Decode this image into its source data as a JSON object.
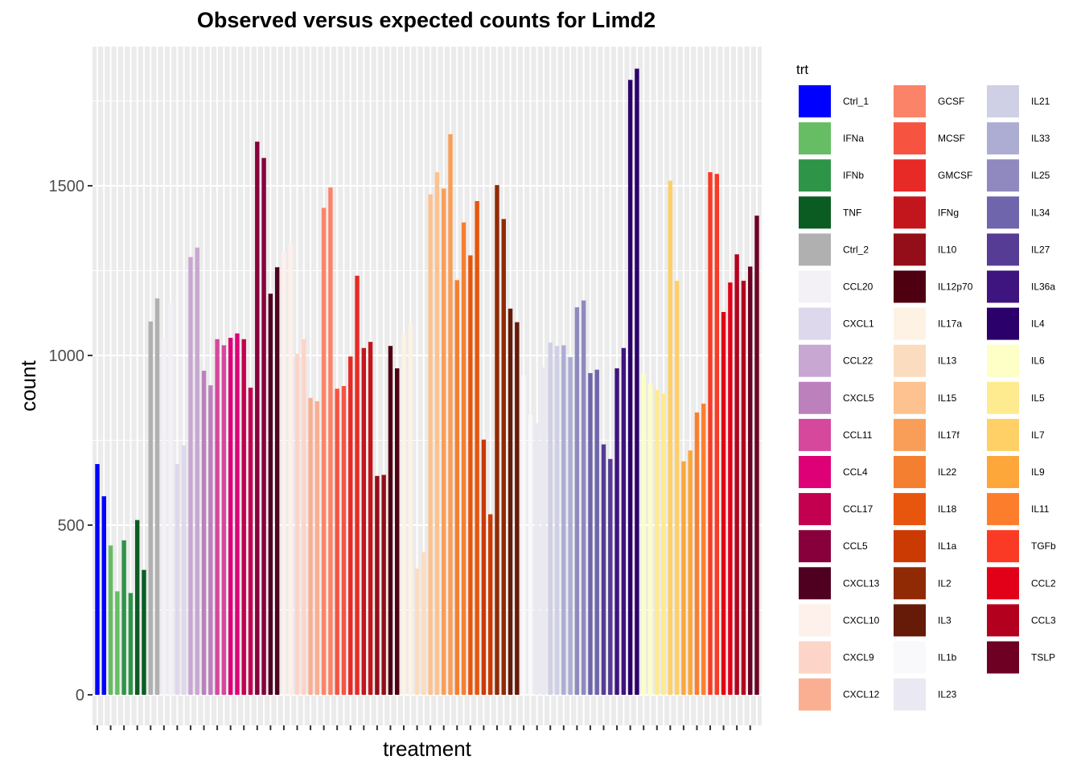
{
  "chart_data": {
    "type": "bar",
    "title": "Observed versus expected counts for Limd2",
    "xlabel": "treatment",
    "ylabel": "count",
    "ylim": [
      -90,
      1910
    ],
    "yticks": [
      0,
      500,
      1000,
      1500
    ],
    "grid": true,
    "legend_title": "trt",
    "legend_position": "right",
    "groups": [
      {
        "name": "Ctrl_1",
        "color": "#0000FF",
        "values": [
          680,
          585
        ]
      },
      {
        "name": "IFNa",
        "color": "#66BD63",
        "values": [
          440,
          305
        ]
      },
      {
        "name": "IFNb",
        "color": "#2E9448",
        "values": [
          455,
          300
        ]
      },
      {
        "name": "TNF",
        "color": "#0B5C23",
        "values": [
          515,
          368
        ]
      },
      {
        "name": "Ctrl_2",
        "color": "#B0B0B0",
        "values": [
          1100,
          1168
        ]
      },
      {
        "name": "CCL20",
        "color": "#F3F0F6",
        "values": [
          1050,
          1155
        ]
      },
      {
        "name": "CXCL1",
        "color": "#DED8EC",
        "values": [
          680,
          735
        ]
      },
      {
        "name": "CCL22",
        "color": "#C8A7D2",
        "values": [
          1290,
          1318
        ]
      },
      {
        "name": "CXCL5",
        "color": "#BC80BD",
        "values": [
          955,
          912
        ]
      },
      {
        "name": "CCL11",
        "color": "#D5489C",
        "values": [
          1048,
          1030
        ]
      },
      {
        "name": "CCL4",
        "color": "#DD0077",
        "values": [
          1052,
          1065
        ]
      },
      {
        "name": "CCL17",
        "color": "#C2004F",
        "values": [
          1048,
          905
        ]
      },
      {
        "name": "CCL5",
        "color": "#87003B",
        "values": [
          1630,
          1582
        ]
      },
      {
        "name": "CXCL13",
        "color": "#4F0020",
        "values": [
          1182,
          1260
        ]
      },
      {
        "name": "CXCL10",
        "color": "#FEF1EC",
        "values": [
          1305,
          1332
        ]
      },
      {
        "name": "CXCL9",
        "color": "#FCD5C8",
        "values": [
          1005,
          1048
        ]
      },
      {
        "name": "CXCL12",
        "color": "#FAAE92",
        "values": [
          875,
          865
        ]
      },
      {
        "name": "GCSF",
        "color": "#FB8468",
        "values": [
          1435,
          1495
        ]
      },
      {
        "name": "MCSF",
        "color": "#F65440",
        "values": [
          902,
          910
        ]
      },
      {
        "name": "GMCSF",
        "color": "#E82A26",
        "values": [
          997,
          1235
        ]
      },
      {
        "name": "IFNg",
        "color": "#C3161C",
        "values": [
          1022,
          1040
        ]
      },
      {
        "name": "IL10",
        "color": "#930E18",
        "values": [
          645,
          648
        ]
      },
      {
        "name": "IL12p70",
        "color": "#4F0010",
        "values": [
          1028,
          962
        ]
      },
      {
        "name": "IL17a",
        "color": "#FEF2E5",
        "values": [
          1062,
          1090
        ]
      },
      {
        "name": "IL13",
        "color": "#FCDCBE",
        "values": [
          372,
          420
        ]
      },
      {
        "name": "IL15",
        "color": "#FDC28F",
        "values": [
          1475,
          1540
        ]
      },
      {
        "name": "IL17f",
        "color": "#F99E59",
        "values": [
          1492,
          1652
        ]
      },
      {
        "name": "IL22",
        "color": "#F57F31",
        "values": [
          1222,
          1392
        ]
      },
      {
        "name": "IL18",
        "color": "#E8550C",
        "values": [
          1295,
          1455
        ]
      },
      {
        "name": "IL1a",
        "color": "#CC3A04",
        "values": [
          752,
          532
        ]
      },
      {
        "name": "IL2",
        "color": "#902A04",
        "values": [
          1502,
          1402
        ]
      },
      {
        "name": "IL3",
        "color": "#661A08",
        "values": [
          1138,
          1098
        ]
      },
      {
        "name": "IL1b",
        "color": "#F9F9FC",
        "values": [
          942,
          825
        ]
      },
      {
        "name": "IL23",
        "color": "#EAE8F2",
        "values": [
          800,
          965
        ]
      },
      {
        "name": "IL21",
        "color": "#CFD0E6",
        "values": [
          1038,
          1028
        ]
      },
      {
        "name": "IL33",
        "color": "#ADADD4",
        "values": [
          1030,
          995
        ]
      },
      {
        "name": "IL25",
        "color": "#8F89C0",
        "values": [
          1142,
          1162
        ]
      },
      {
        "name": "IL34",
        "color": "#6E65AC",
        "values": [
          948,
          958
        ]
      },
      {
        "name": "IL27",
        "color": "#563C95",
        "values": [
          738,
          695
        ]
      },
      {
        "name": "IL36a",
        "color": "#3E147E",
        "values": [
          962,
          1022
        ]
      },
      {
        "name": "IL4",
        "color": "#2B006B",
        "values": [
          1812,
          1845
        ]
      },
      {
        "name": "IL6",
        "color": "#FEFFC6",
        "values": [
          945,
          918
        ]
      },
      {
        "name": "IL5",
        "color": "#FFEB8F",
        "values": [
          898,
          888
        ]
      },
      {
        "name": "IL7",
        "color": "#FED065",
        "values": [
          1515,
          1220
        ]
      },
      {
        "name": "IL9",
        "color": "#FDA63A",
        "values": [
          688,
          720
        ]
      },
      {
        "name": "IL11",
        "color": "#FC7E2D",
        "values": [
          832,
          858
        ]
      },
      {
        "name": "TGFb",
        "color": "#FB3A25",
        "values": [
          1540,
          1535
        ]
      },
      {
        "name": "CCL2",
        "color": "#E10018",
        "values": [
          1128,
          1215
        ]
      },
      {
        "name": "CCL3",
        "color": "#B4001F",
        "values": [
          1298,
          1220
        ]
      },
      {
        "name": "TSLP",
        "color": "#6D0023",
        "values": [
          1262,
          1412
        ]
      }
    ]
  }
}
